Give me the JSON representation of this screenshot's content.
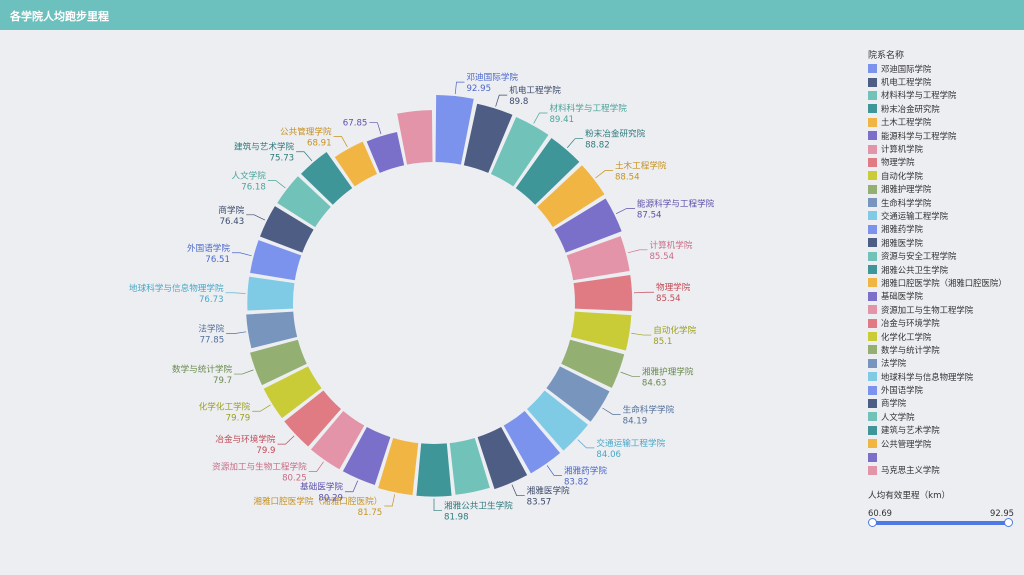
{
  "header": {
    "title": "各学院人均跑步里程"
  },
  "legend": {
    "title": "院系名称",
    "items": [
      {
        "label": "邓迪国际学院",
        "color": "#7b93ed"
      },
      {
        "label": "机电工程学院",
        "color": "#4e5d84"
      },
      {
        "label": "材料科学与工程学院",
        "color": "#71c2b9"
      },
      {
        "label": "粉末冶金研究院",
        "color": "#3e9699"
      },
      {
        "label": "土木工程学院",
        "color": "#f1b544"
      },
      {
        "label": "能源科学与工程学院",
        "color": "#7a6fc9"
      },
      {
        "label": "计算机学院",
        "color": "#e394a9"
      },
      {
        "label": "物理学院",
        "color": "#e07b84"
      },
      {
        "label": "自动化学院",
        "color": "#c9cc36"
      },
      {
        "label": "湘雅护理学院",
        "color": "#93b072"
      },
      {
        "label": "生命科学学院",
        "color": "#7895bd"
      },
      {
        "label": "交通运输工程学院",
        "color": "#7fcbe6"
      },
      {
        "label": "湘雅药学院",
        "color": "#7b93ed"
      },
      {
        "label": "湘雅医学院",
        "color": "#4e5d84"
      },
      {
        "label": "资源与安全工程学院",
        "color": "#71c2b9"
      },
      {
        "label": "湘雅公共卫生学院",
        "color": "#3e9699"
      },
      {
        "label": "湘雅口腔医学院（湘雅口腔医院）",
        "color": "#f1b544"
      },
      {
        "label": "基础医学院",
        "color": "#7a6fc9"
      },
      {
        "label": "资源加工与生物工程学院",
        "color": "#e394a9"
      },
      {
        "label": "冶金与环境学院",
        "color": "#e07b84"
      },
      {
        "label": "化学化工学院",
        "color": "#c9cc36"
      },
      {
        "label": "数学与统计学院",
        "color": "#93b072"
      },
      {
        "label": "法学院",
        "color": "#7895bd"
      },
      {
        "label": "地球科学与信息物理学院",
        "color": "#7fcbe6"
      },
      {
        "label": "外国语学院",
        "color": "#7b93ed"
      },
      {
        "label": "商学院",
        "color": "#4e5d84"
      },
      {
        "label": "人文学院",
        "color": "#71c2b9"
      },
      {
        "label": "建筑与艺术学院",
        "color": "#3e9699"
      },
      {
        "label": "公共管理学院",
        "color": "#f1b544"
      },
      {
        "label": "",
        "color": "#7a6fc9"
      },
      {
        "label": "马克思主义学院",
        "color": "#e394a9"
      }
    ]
  },
  "range": {
    "title": "人均有效里程（km）",
    "min_label": "60.69",
    "max_label": "92.95",
    "min": 60.69,
    "max": 92.95,
    "selected": [
      60.69,
      92.95
    ],
    "color": "#4e79e6"
  },
  "chart_data": {
    "type": "pie",
    "variant": "rose-donut",
    "title": "各学院人均跑步里程",
    "legend_title": "院系名称",
    "categories": [
      "邓迪国际学院",
      "机电工程学院",
      "材料科学与工程学院",
      "粉末冶金研究院",
      "土木工程学院",
      "能源科学与工程学院",
      "计算机学院",
      "物理学院",
      "自动化学院",
      "湘雅护理学院",
      "生命科学学院",
      "交通运输工程学院",
      "湘雅药学院",
      "湘雅医学院",
      "资源与安全工程学院",
      "湘雅公共卫生学院",
      "湘雅口腔医学院（湘雅口腔医院）",
      "基础医学院",
      "资源加工与生物工程学院",
      "冶金与环境学院",
      "化学化工学院",
      "数学与统计学院",
      "法学院",
      "地球科学与信息物理学院",
      "外国语学院",
      "商学院",
      "人文学院",
      "建筑与艺术学院",
      "公共管理学院",
      "",
      "马克思主义学院"
    ],
    "values": [
      92.95,
      89.8,
      89.41,
      88.82,
      88.54,
      87.54,
      85.54,
      85.54,
      85.1,
      84.63,
      84.19,
      84.06,
      83.82,
      83.57,
      null,
      81.98,
      81.75,
      80.29,
      80.25,
      79.9,
      79.79,
      79.7,
      77.85,
      76.73,
      76.51,
      76.43,
      76.18,
      75.73,
      68.91,
      67.85,
      null
    ],
    "data_labels": [
      {
        "name": "邓迪国际学院",
        "value": "92.95"
      },
      {
        "name": "机电工程学院",
        "value": "89.8"
      },
      {
        "name": "材料科学与工程学院",
        "value": "89.41"
      },
      {
        "name": "粉末冶金研究院",
        "value": "88.82"
      },
      {
        "name": "土木工程学院",
        "value": "88.54"
      },
      {
        "name": "能源科学与工程学院",
        "value": "87.54"
      },
      {
        "name": "计算机学院",
        "value": "85.54"
      },
      {
        "name": "物理学院",
        "value": "85.54"
      },
      {
        "name": "自动化学院",
        "value": "85.1"
      },
      {
        "name": "湘雅护理学院",
        "value": "84.63"
      },
      {
        "name": "生命科学学院",
        "value": "84.19"
      },
      {
        "name": "交通运输工程学院",
        "value": "84.06"
      },
      {
        "name": "湘雅药学院",
        "value": "83.82"
      },
      {
        "name": "湘雅医学院",
        "value": "83.57"
      },
      {
        "name": "",
        "value": ""
      },
      {
        "name": "湘雅公共卫生学院",
        "value": "81.98"
      },
      {
        "name": "湘雅口腔医学院（湘雅口腔医院）",
        "value": "81.75"
      },
      {
        "name": "基础医学院",
        "value": "80.29"
      },
      {
        "name": "资源加工与生物工程学院",
        "value": "80.25"
      },
      {
        "name": "冶金与环境学院",
        "value": "79.9"
      },
      {
        "name": "化学化工学院",
        "value": "79.79"
      },
      {
        "name": "数学与统计学院",
        "value": "79.7"
      },
      {
        "name": "法学院",
        "value": "77.85"
      },
      {
        "name": "地球科学与信息物理学院",
        "value": "76.73"
      },
      {
        "name": "外国语学院",
        "value": "76.51"
      },
      {
        "name": "商学院",
        "value": "76.43"
      },
      {
        "name": "人文学院",
        "value": "76.18"
      },
      {
        "name": "建筑与艺术学院",
        "value": "75.73"
      },
      {
        "name": "公共管理学院",
        "value": "68.91"
      },
      {
        "name": "",
        "value": "67.85"
      },
      {
        "name": "",
        "value": ""
      }
    ],
    "label_colors": [
      "#4c68c9",
      "#3d4a6b",
      "#4fa39a",
      "#2f7a7c",
      "#c8921f",
      "#5c51ab",
      "#c96c84",
      "#c24a54",
      "#9da01c",
      "#6b8a4e",
      "#53709a",
      "#4aa8c8",
      "#4c68c9",
      "#3d4a6b",
      "#4fa39a",
      "#2f7a7c",
      "#c8921f",
      "#5c51ab",
      "#c96c84",
      "#c24a54",
      "#9da01c",
      "#6b8a4e",
      "#53709a",
      "#4aa8c8",
      "#4c68c9",
      "#3d4a6b",
      "#4fa39a",
      "#2f7a7c",
      "#c8921f",
      "#5c51ab",
      "#c96c84"
    ]
  }
}
